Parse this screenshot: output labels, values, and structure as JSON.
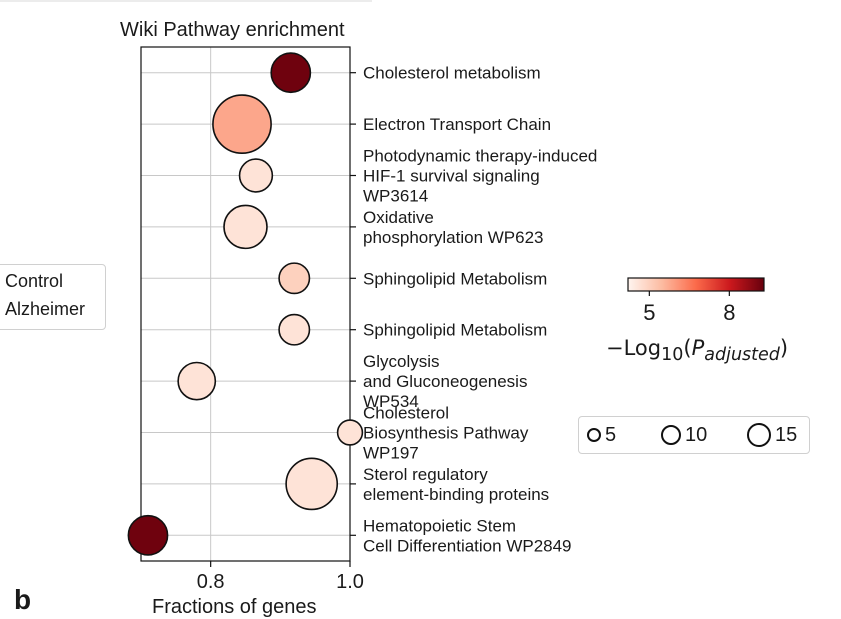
{
  "legend_left": {
    "items": [
      "Control",
      "Alzheimer"
    ]
  },
  "panel_letter": "b",
  "colorbar": {
    "ticks": [
      5,
      8
    ],
    "min": 4.2,
    "max": 9.3,
    "label_prefix": "−Log",
    "label_sub": "10",
    "label_var": "P",
    "label_var_sub": "adjusted"
  },
  "size_legend": {
    "values": [
      5,
      10,
      15
    ],
    "labels": [
      "5",
      "10",
      "15"
    ]
  },
  "chart_data": {
    "type": "scatter",
    "title": "Wiki Pathway enrichment",
    "xlabel": "Fractions of genes",
    "ylabel": "",
    "xlim": [
      0.7,
      1.0
    ],
    "xticks": [
      0.8,
      1.0
    ],
    "xtick_labels": [
      "0.8",
      "1.0"
    ],
    "grid": true,
    "categories": [
      [
        "Cholesterol metabolism"
      ],
      [
        "Electron Transport Chain"
      ],
      [
        "Photodynamic therapy-induced",
        "HIF-1 survival signaling",
        "WP3614"
      ],
      [
        "Oxidative",
        "phosphorylation WP623"
      ],
      [
        "Sphingolipid Metabolism"
      ],
      [
        "Sphingolipid Metabolism"
      ],
      [
        "Glycolysis",
        "and Gluconeogenesis",
        "WP534"
      ],
      [
        "Cholesterol",
        "Biosynthesis Pathway",
        "WP197"
      ],
      [
        "Sterol regulatory",
        "element-binding proteins"
      ],
      [
        "Hematopoietic Stem",
        "Cell Differentiation WP2849"
      ]
    ],
    "x": [
      0.915,
      0.845,
      0.865,
      0.85,
      0.92,
      0.92,
      0.78,
      1.0,
      0.945,
      0.71
    ],
    "gene_count": [
      10,
      22,
      7,
      12,
      6,
      6,
      9,
      4,
      17,
      10
    ],
    "neg_log10_p_adjusted": [
      9.2,
      5.8,
      4.6,
      4.6,
      5.0,
      4.6,
      4.6,
      4.6,
      4.6,
      9.2
    ]
  }
}
